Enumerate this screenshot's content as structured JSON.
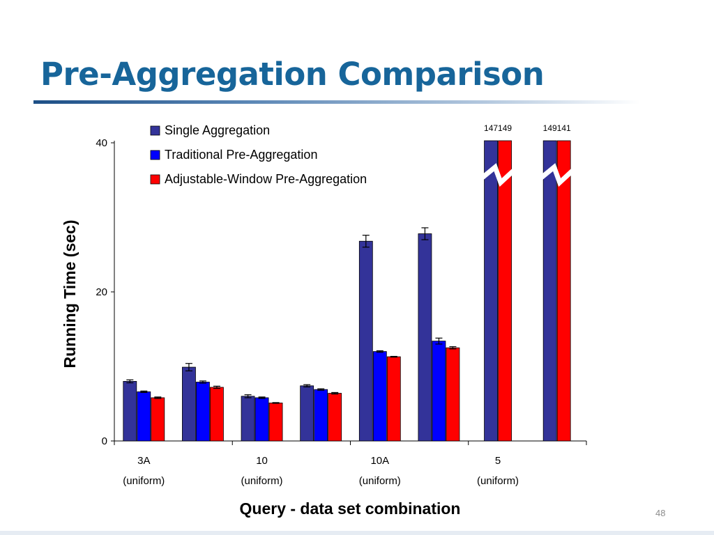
{
  "slide": {
    "title": "Pre-Aggregation Comparison",
    "page_number": "48"
  },
  "chart_data": {
    "type": "bar",
    "title": "",
    "xlabel": "Query - data set combination",
    "ylabel": "Running Time (sec)",
    "ylim": [
      0,
      40
    ],
    "yticks": [
      0,
      20,
      40
    ],
    "grid": false,
    "legend_position": "top-left",
    "axis_break": true,
    "categories": [
      [
        "3A",
        "(uniform)"
      ],
      [
        "",
        ""
      ],
      [
        "10",
        "(uniform)"
      ],
      [
        "",
        ""
      ],
      [
        "10A",
        "(uniform)"
      ],
      [
        "",
        ""
      ],
      [
        "5",
        "(uniform)"
      ],
      [
        "",
        ""
      ]
    ],
    "series": [
      {
        "name": "Single Aggregation",
        "color": "#333399",
        "values": [
          8.0,
          9.9,
          6.0,
          7.4,
          26.8,
          27.8,
          147,
          149
        ],
        "errors": [
          0.2,
          0.5,
          0.2,
          0.15,
          0.8,
          0.8,
          null,
          null
        ],
        "value_labels": [
          null,
          null,
          null,
          null,
          null,
          null,
          "147",
          "149"
        ]
      },
      {
        "name": "Traditional Pre-Aggregation",
        "color": "#0000ff",
        "values": [
          6.6,
          7.9,
          5.8,
          6.9,
          12.0,
          13.4,
          null,
          null
        ],
        "errors": [
          0.1,
          0.15,
          0.1,
          0.1,
          0.1,
          0.4,
          null,
          null
        ],
        "value_labels": [
          null,
          null,
          null,
          null,
          null,
          null,
          null,
          null
        ]
      },
      {
        "name": "Adjustable-Window Pre-Aggregation",
        "color": "#ff0000",
        "values": [
          5.8,
          7.2,
          5.1,
          6.4,
          11.3,
          12.5,
          149,
          141
        ],
        "errors": [
          0.1,
          0.15,
          0.05,
          0.1,
          0.05,
          0.15,
          null,
          null
        ],
        "value_labels": [
          null,
          null,
          null,
          null,
          null,
          null,
          "149",
          "141"
        ]
      }
    ]
  }
}
